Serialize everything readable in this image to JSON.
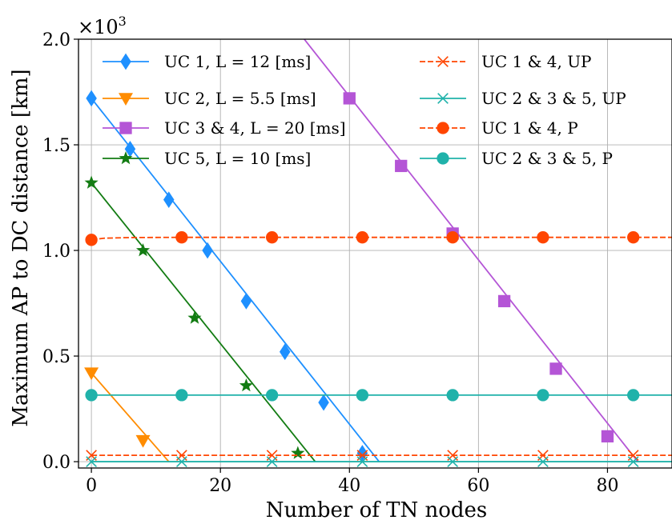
{
  "chart_data": {
    "type": "line",
    "xlabel": "Number of TN nodes",
    "ylabel": "Maximum AP to DC distance [km]",
    "scale_label": "×10",
    "scale_exponent": "3",
    "xlim": [
      -2,
      90
    ],
    "ylim": [
      -0.03,
      2.0
    ],
    "xticks": [
      0,
      20,
      40,
      60,
      80
    ],
    "yticks": [
      0.0,
      0.5,
      1.0,
      1.5,
      2.0
    ],
    "ytick_labels": [
      "0.0",
      "0.5",
      "1.0",
      "1.5",
      "2.0"
    ],
    "grid": true,
    "legend_position": "top",
    "series": [
      {
        "name": "UC 1, L = 12 [ms]",
        "color": "#1e90ff",
        "marker": "diamond",
        "dash": "solid",
        "x": [
          0,
          44.6
        ],
        "y": [
          1.72,
          0
        ],
        "mx": [
          0,
          6,
          12,
          18,
          24,
          30,
          36,
          42
        ],
        "my": [
          1.72,
          1.48,
          1.24,
          1.0,
          0.76,
          0.52,
          0.28,
          0.04
        ]
      },
      {
        "name": "UC 2, L = 5.5 [ms]",
        "color": "#ff8c00",
        "marker": "triangle-down",
        "dash": "solid",
        "x": [
          0,
          12.0
        ],
        "y": [
          0.42,
          0
        ],
        "mx": [
          0,
          8
        ],
        "my": [
          0.42,
          0.1
        ]
      },
      {
        "name": "UC 3 & 4, L = 20 [ms]",
        "color": "#b455d6",
        "marker": "square",
        "dash": "solid",
        "x": [
          33,
          84.7
        ],
        "y": [
          2.0,
          0
        ],
        "mx": [
          40,
          48,
          56,
          64,
          72,
          80
        ],
        "my": [
          1.72,
          1.4,
          1.08,
          0.76,
          0.44,
          0.12
        ]
      },
      {
        "name": "UC 5, L = 10 [ms]",
        "color": "#137c13",
        "marker": "star",
        "dash": "solid",
        "x": [
          0,
          34.7
        ],
        "y": [
          1.32,
          0
        ],
        "mx": [
          0,
          8,
          16,
          24,
          32
        ],
        "my": [
          1.32,
          1.0,
          0.68,
          0.36,
          0.04
        ]
      },
      {
        "name": "UC 1 & 4, UP",
        "color": "#ff4500",
        "marker": "x",
        "dash": "dashed",
        "x": [
          0,
          90
        ],
        "y": [
          0.03,
          0.03
        ],
        "mx": [
          0,
          14,
          28,
          42,
          56,
          70,
          84
        ],
        "my": [
          0.03,
          0.03,
          0.03,
          0.03,
          0.03,
          0.03,
          0.03
        ]
      },
      {
        "name": "UC 2 & 3 & 5, UP",
        "color": "#20b2aa",
        "marker": "x",
        "dash": "solid",
        "x": [
          0,
          90
        ],
        "y": [
          0.0,
          0.0
        ],
        "mx": [
          0,
          14,
          28,
          42,
          56,
          70,
          84
        ],
        "my": [
          0.0,
          0.0,
          0.0,
          0.0,
          0.0,
          0.0,
          0.0
        ]
      },
      {
        "name": "UC 1 & 4, P",
        "color": "#ff4500",
        "marker": "circle",
        "dash": "dashed",
        "x": [
          0,
          2,
          6,
          14,
          90
        ],
        "y": [
          1.05,
          1.058,
          1.061,
          1.062,
          1.062
        ],
        "mx": [
          0,
          14,
          28,
          42,
          56,
          70,
          84
        ],
        "my": [
          1.05,
          1.062,
          1.062,
          1.062,
          1.062,
          1.062,
          1.062
        ]
      },
      {
        "name": "UC 2 & 3 & 5, P",
        "color": "#20b2aa",
        "marker": "circle",
        "dash": "solid",
        "x": [
          0,
          90
        ],
        "y": [
          0.315,
          0.315
        ],
        "mx": [
          0,
          14,
          28,
          42,
          56,
          70,
          84
        ],
        "my": [
          0.315,
          0.315,
          0.315,
          0.315,
          0.315,
          0.315,
          0.315
        ]
      }
    ]
  }
}
